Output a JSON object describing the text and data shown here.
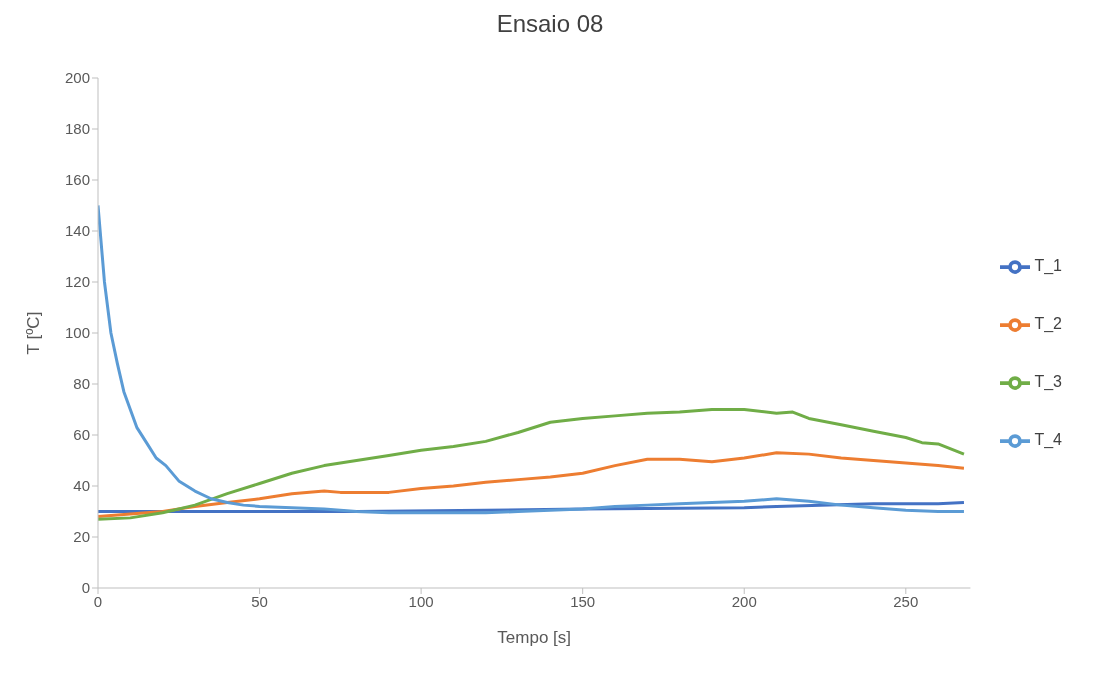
{
  "chart_data": {
    "type": "line",
    "title": "Ensaio 08",
    "xlabel": "Tempo [s]",
    "ylabel": "T [ºC]",
    "xlim": [
      0,
      270
    ],
    "xticks": [
      0,
      50,
      100,
      150,
      200,
      250
    ],
    "ylim": [
      0,
      200
    ],
    "yticks": [
      0,
      20,
      40,
      60,
      80,
      100,
      120,
      140,
      160,
      180,
      200
    ],
    "grid": false,
    "legend": "right",
    "marker": "none",
    "line_style": "solid",
    "series": [
      {
        "name": "T_1",
        "color": "#4472c4",
        "x": [
          0,
          40,
          80,
          120,
          150,
          200,
          210,
          240,
          260,
          268
        ],
        "values": [
          30,
          30,
          30,
          30.5,
          31,
          31.5,
          32,
          33,
          33,
          33.5
        ]
      },
      {
        "name": "T_2",
        "color": "#ed7d31",
        "x": [
          0,
          10,
          20,
          30,
          40,
          50,
          60,
          70,
          75,
          90,
          100,
          110,
          120,
          130,
          140,
          150,
          160,
          170,
          180,
          190,
          200,
          210,
          220,
          230,
          240,
          250,
          260,
          268
        ],
        "values": [
          28,
          29,
          30,
          32,
          33.5,
          35,
          37,
          38,
          37.5,
          37.5,
          39,
          40,
          41.5,
          42.5,
          43.5,
          45,
          48,
          50.5,
          50.5,
          49.5,
          51,
          53,
          52.5,
          51,
          50,
          49,
          48,
          47
        ]
      },
      {
        "name": "T_3",
        "color": "#70ad47",
        "x": [
          0,
          10,
          20,
          30,
          40,
          50,
          60,
          70,
          80,
          90,
          100,
          110,
          120,
          130,
          140,
          150,
          160,
          170,
          180,
          190,
          200,
          210,
          215,
          220,
          230,
          240,
          250,
          255,
          260,
          268
        ],
        "values": [
          27,
          27.5,
          29.5,
          32.5,
          37,
          41,
          45,
          48,
          50,
          52,
          54,
          55.5,
          57.5,
          61,
          65,
          66.5,
          67.5,
          68.5,
          69,
          70,
          70,
          68.5,
          69,
          66.5,
          64,
          61.5,
          59,
          57,
          56.5,
          52.5
        ]
      },
      {
        "name": "T_4",
        "color": "#5b9bd5",
        "x": [
          0,
          2,
          4,
          6,
          8,
          10,
          12,
          15,
          18,
          21,
          25,
          30,
          35,
          40,
          45,
          50,
          60,
          70,
          80,
          90,
          100,
          110,
          120,
          130,
          140,
          150,
          160,
          170,
          180,
          190,
          200,
          210,
          220,
          230,
          240,
          250,
          260,
          268
        ],
        "values": [
          150,
          120,
          100,
          88,
          77,
          70,
          63,
          57,
          51,
          48,
          42,
          38,
          35,
          33.5,
          32.5,
          32,
          31.5,
          31,
          30,
          29.5,
          29.5,
          29.5,
          29.5,
          30,
          30.5,
          31,
          32,
          32.5,
          33,
          33.5,
          34,
          35,
          34,
          32.5,
          31.5,
          30.5,
          30,
          30
        ]
      }
    ]
  }
}
